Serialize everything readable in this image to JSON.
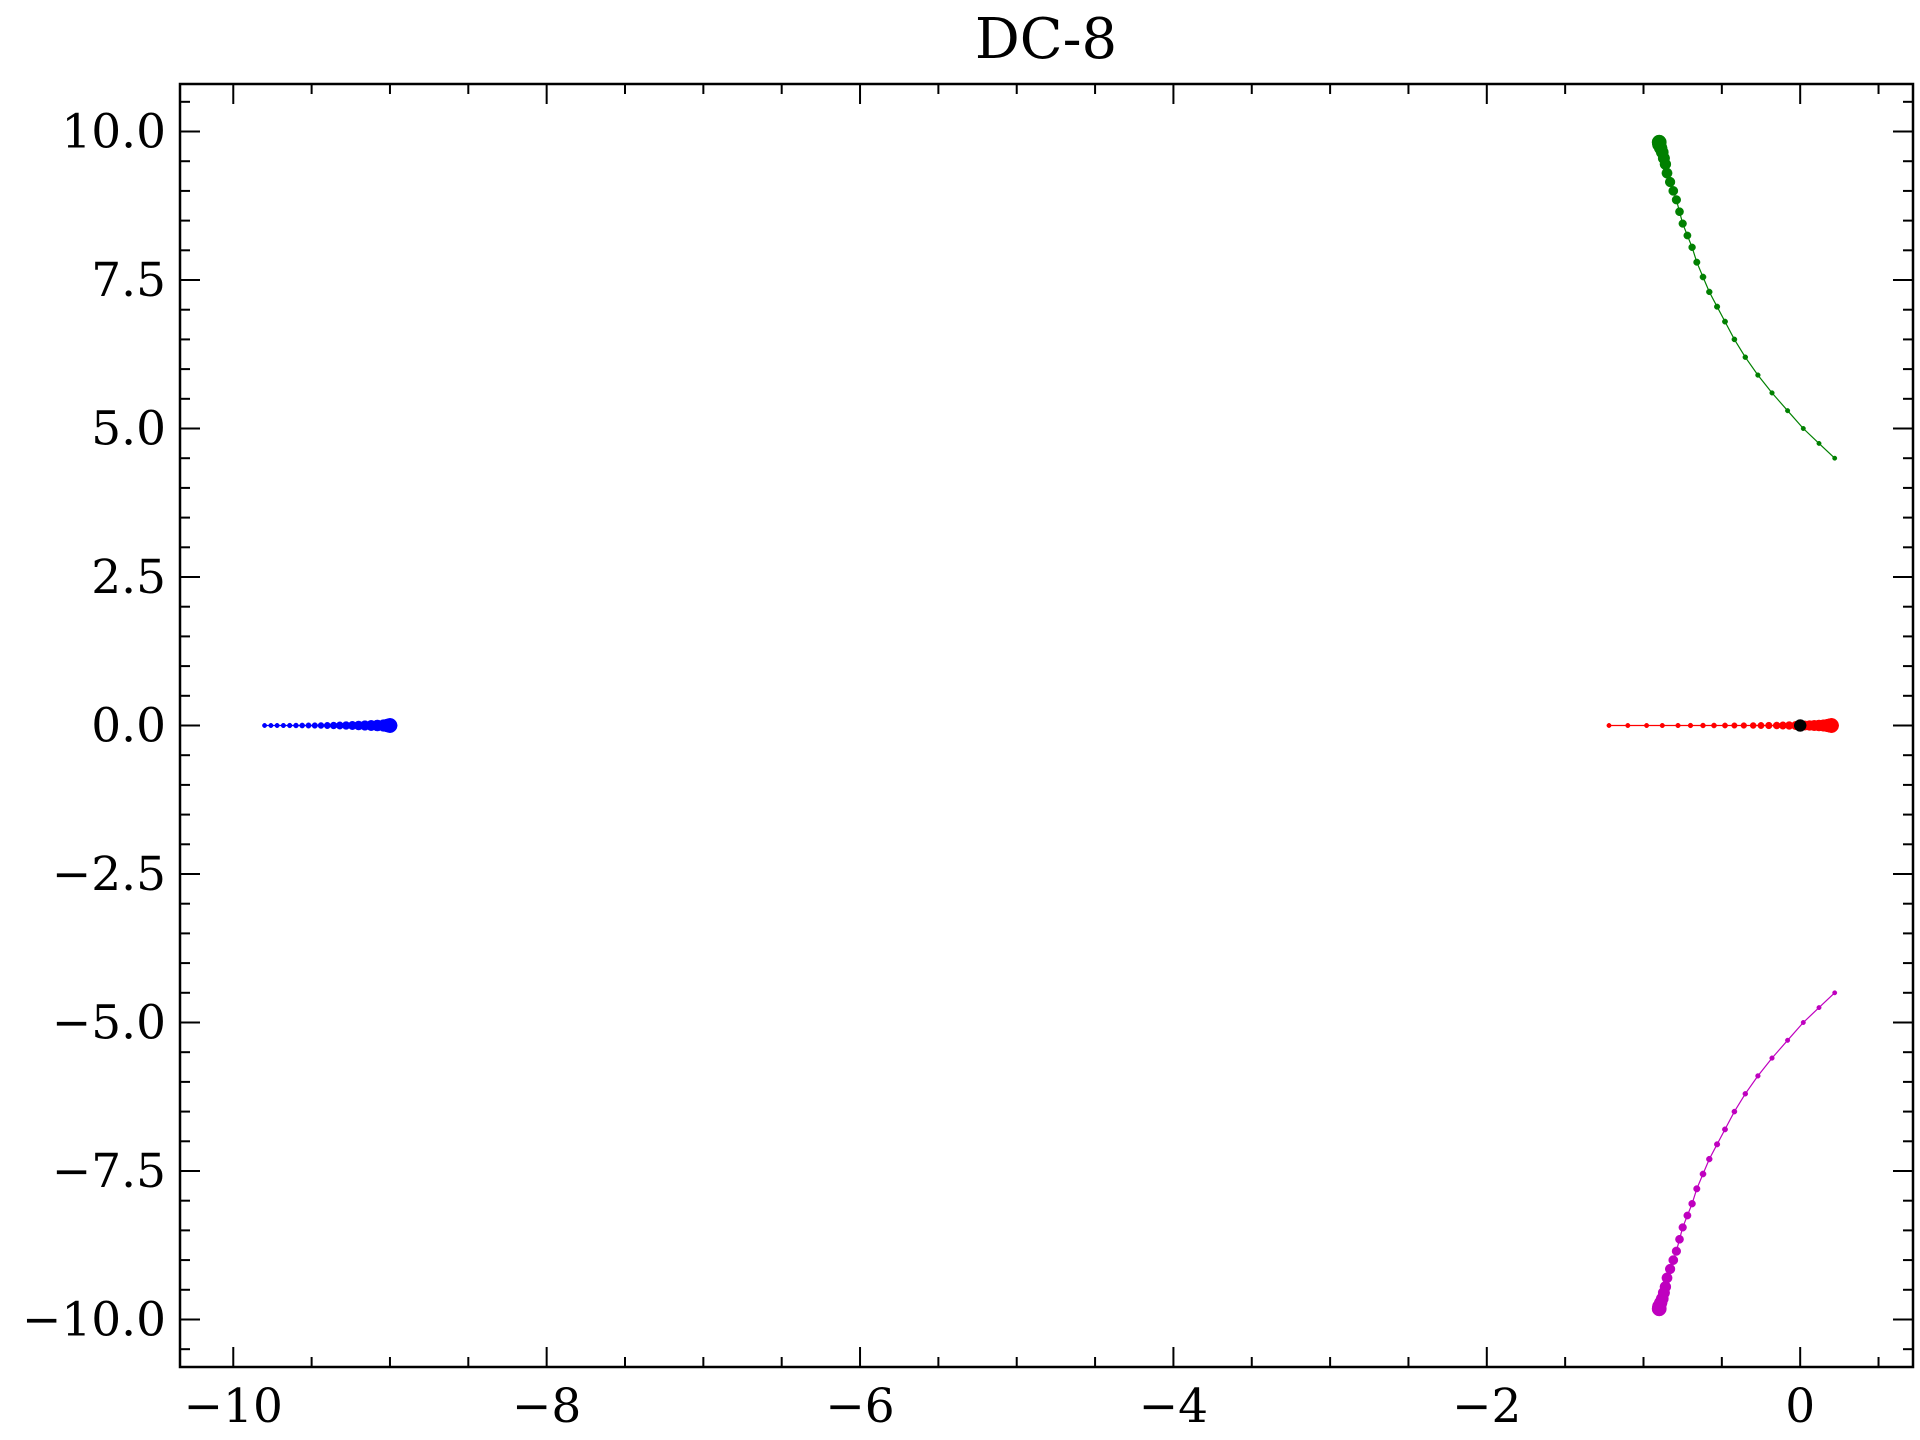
{
  "chart_data": {
    "type": "scatter",
    "title": "DC-8",
    "xlabel": "",
    "ylabel": "",
    "xlim": [
      -10.34,
      0.72
    ],
    "ylim": [
      -10.8,
      10.8
    ],
    "grid": false,
    "xticks": [
      -10,
      -8,
      -6,
      -4,
      -2,
      0
    ],
    "xtick_labels": [
      "−10",
      "−8",
      "−6",
      "−4",
      "−2",
      "0"
    ],
    "yticks": [
      10.0,
      7.5,
      5.0,
      2.5,
      0.0,
      -2.5,
      -5.0,
      -7.5,
      -10.0
    ],
    "ytick_labels": [
      "10.0",
      "7.5",
      "5.0",
      "2.5",
      "0.0",
      "−2.5",
      "−5.0",
      "−7.5",
      "−10.0"
    ],
    "series": [
      {
        "color": "#0000ff",
        "x": [
          -9.8,
          -9.76,
          -9.72,
          -9.68,
          -9.64,
          -9.6,
          -9.56,
          -9.52,
          -9.48,
          -9.44,
          -9.4,
          -9.36,
          -9.32,
          -9.28,
          -9.24,
          -9.2,
          -9.16,
          -9.12,
          -9.08,
          -9.04,
          -9.02,
          -9.01,
          -9.0
        ],
        "y": [
          0,
          0,
          0,
          0,
          0,
          0,
          0,
          0,
          0,
          0,
          0,
          0,
          0,
          0,
          0,
          0,
          0,
          0,
          0,
          0,
          0,
          0,
          0
        ]
      },
      {
        "color": "#ff0000",
        "x": [
          -1.22,
          -1.1,
          -0.98,
          -0.88,
          -0.78,
          -0.7,
          -0.62,
          -0.55,
          -0.48,
          -0.42,
          -0.36,
          -0.3,
          -0.25,
          -0.2,
          -0.15,
          -0.11,
          -0.07,
          -0.03,
          0.0,
          0.03,
          0.06,
          0.09,
          0.12,
          0.15,
          0.17,
          0.18,
          0.19,
          0.2
        ],
        "y": [
          0,
          0,
          0,
          0,
          0,
          0,
          0,
          0,
          0,
          0,
          0,
          0,
          0,
          0,
          0,
          0,
          0,
          0,
          0,
          0,
          0,
          0,
          0,
          0,
          0,
          0,
          0,
          0
        ]
      },
      {
        "color": "#008000",
        "x": [
          0.22,
          0.12,
          0.02,
          -0.08,
          -0.18,
          -0.27,
          -0.35,
          -0.42,
          -0.48,
          -0.53,
          -0.58,
          -0.62,
          -0.66,
          -0.69,
          -0.72,
          -0.75,
          -0.77,
          -0.79,
          -0.81,
          -0.83,
          -0.85,
          -0.86,
          -0.87,
          -0.88,
          -0.89,
          -0.9,
          -0.9
        ],
        "y": [
          4.5,
          4.75,
          5.0,
          5.3,
          5.6,
          5.9,
          6.2,
          6.5,
          6.8,
          7.05,
          7.3,
          7.55,
          7.8,
          8.05,
          8.25,
          8.45,
          8.65,
          8.85,
          9.0,
          9.15,
          9.3,
          9.45,
          9.55,
          9.65,
          9.72,
          9.78,
          9.82
        ]
      },
      {
        "color": "#bf00bf",
        "x": [
          0.22,
          0.12,
          0.02,
          -0.08,
          -0.18,
          -0.27,
          -0.35,
          -0.42,
          -0.48,
          -0.53,
          -0.58,
          -0.62,
          -0.66,
          -0.69,
          -0.72,
          -0.75,
          -0.77,
          -0.79,
          -0.81,
          -0.83,
          -0.85,
          -0.86,
          -0.87,
          -0.88,
          -0.89,
          -0.9,
          -0.9
        ],
        "y": [
          -4.5,
          -4.75,
          -5.0,
          -5.3,
          -5.6,
          -5.9,
          -6.2,
          -6.5,
          -6.8,
          -7.05,
          -7.3,
          -7.55,
          -7.8,
          -8.05,
          -8.25,
          -8.45,
          -8.65,
          -8.85,
          -9.0,
          -9.15,
          -9.3,
          -9.45,
          -9.55,
          -9.65,
          -9.72,
          -9.78,
          -9.82
        ]
      },
      {
        "color": "#000000",
        "x": [
          0.0
        ],
        "y": [
          0.0
        ]
      }
    ]
  }
}
